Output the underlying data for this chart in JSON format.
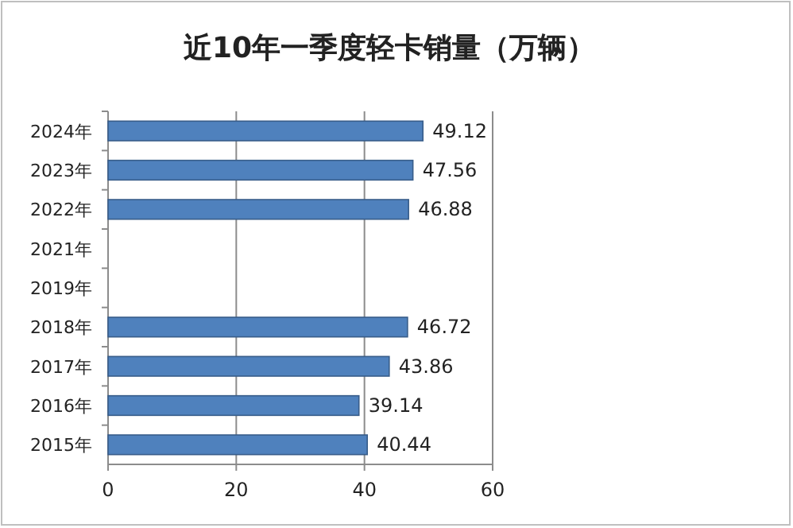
{
  "chart_data": {
    "type": "bar",
    "orientation": "horizontal",
    "title": "近10年一季度轻卡销量（万辆）",
    "categories": [
      "2024年",
      "2023年",
      "2022年",
      "2021年",
      "2019年",
      "2018年",
      "2017年",
      "2016年",
      "2015年"
    ],
    "values": [
      49.12,
      47.56,
      46.88,
      null,
      null,
      46.72,
      43.86,
      39.14,
      40.44
    ],
    "color": "#4f81bd",
    "xlim": [
      0,
      60
    ],
    "xticks": [
      0,
      20,
      40,
      60
    ],
    "grid": "x",
    "data_labels": true
  }
}
